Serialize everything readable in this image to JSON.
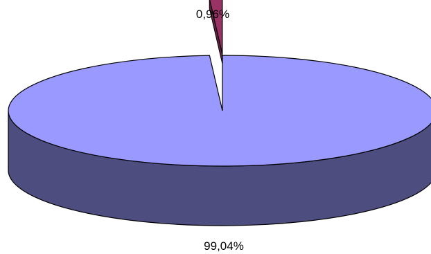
{
  "chart_data": {
    "type": "pie",
    "style": "3d-exploded",
    "slices": [
      {
        "value": 99.04,
        "label": "99,04%",
        "color": "#9999ff",
        "side_color": "#4d4d80"
      },
      {
        "value": 0.96,
        "label": "0,96%",
        "color": "#993366",
        "side_color": "#662244"
      }
    ],
    "legend": "none"
  }
}
